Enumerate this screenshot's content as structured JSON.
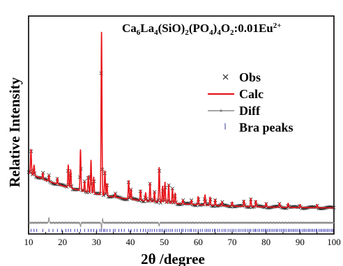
{
  "chart_data": {
    "type": "line",
    "title": {
      "parts": [
        {
          "t": "Ca"
        },
        {
          "t": "6",
          "sub": true
        },
        {
          "t": "La"
        },
        {
          "t": "4",
          "sub": true
        },
        {
          "t": "(SiO)"
        },
        {
          "t": "2",
          "sub": true
        },
        {
          "t": "(PO"
        },
        {
          "t": "4",
          "sub": true
        },
        {
          "t": ")"
        },
        {
          "t": "4",
          "sub": true
        },
        {
          "t": "O"
        },
        {
          "t": "2",
          "sub": true
        },
        {
          "t": ":0.01Eu"
        },
        {
          "t": "2+",
          "sup": true
        }
      ]
    },
    "xlabel": "2θ /degree",
    "ylabel": "Relative Intensity",
    "xlim": [
      10,
      100
    ],
    "ylim": [
      -0.07,
      1.0
    ],
    "xticks": [
      10,
      20,
      30,
      40,
      50,
      60,
      70,
      80,
      90,
      100
    ],
    "legend": {
      "placement": "right",
      "entries": [
        {
          "label": "Obs",
          "marker": "x",
          "color": "#222222"
        },
        {
          "label": "Calc",
          "marker": "line",
          "color": "#e8151b"
        },
        {
          "label": "Diff",
          "marker": "line-dot",
          "color": "#888888"
        },
        {
          "label": "Bra peaks",
          "marker": "tick",
          "color": "#5a5aa8"
        }
      ]
    },
    "colors": {
      "obs": "#222222",
      "calc": "#e8151b",
      "diff": "#8a8a8a",
      "bragg": "#3a3ab0"
    },
    "background": {
      "x0": 10,
      "y0": 0.175,
      "decay": 0.045,
      "floor": 0.055
    },
    "peaks": [
      {
        "x": 10.7,
        "h": 0.12
      },
      {
        "x": 11.6,
        "h": 0.05
      },
      {
        "x": 14.2,
        "h": 0.03
      },
      {
        "x": 16.0,
        "h": 0.03
      },
      {
        "x": 18.5,
        "h": 0.03
      },
      {
        "x": 21.7,
        "h": 0.11
      },
      {
        "x": 22.4,
        "h": 0.09
      },
      {
        "x": 25.3,
        "h": 0.2
      },
      {
        "x": 26.5,
        "h": 0.05
      },
      {
        "x": 27.6,
        "h": 0.08
      },
      {
        "x": 28.4,
        "h": 0.16
      },
      {
        "x": 29.2,
        "h": 0.08
      },
      {
        "x": 31.5,
        "h": 0.8
      },
      {
        "x": 32.5,
        "h": 0.12
      },
      {
        "x": 33.1,
        "h": 0.06
      },
      {
        "x": 35.5,
        "h": 0.02
      },
      {
        "x": 39.5,
        "h": 0.09
      },
      {
        "x": 40.2,
        "h": 0.05
      },
      {
        "x": 43.0,
        "h": 0.05
      },
      {
        "x": 44.5,
        "h": 0.04
      },
      {
        "x": 45.8,
        "h": 0.09
      },
      {
        "x": 47.1,
        "h": 0.05
      },
      {
        "x": 48.5,
        "h": 0.17
      },
      {
        "x": 49.5,
        "h": 0.08
      },
      {
        "x": 50.2,
        "h": 0.1
      },
      {
        "x": 51.3,
        "h": 0.09
      },
      {
        "x": 52.4,
        "h": 0.07
      },
      {
        "x": 53.2,
        "h": 0.05
      },
      {
        "x": 55.5,
        "h": 0.02
      },
      {
        "x": 58.0,
        "h": 0.02
      },
      {
        "x": 60.0,
        "h": 0.04
      },
      {
        "x": 62.0,
        "h": 0.05
      },
      {
        "x": 63.5,
        "h": 0.04
      },
      {
        "x": 65.0,
        "h": 0.03
      },
      {
        "x": 67.0,
        "h": 0.02
      },
      {
        "x": 70.0,
        "h": 0.02
      },
      {
        "x": 73.5,
        "h": 0.03
      },
      {
        "x": 75.5,
        "h": 0.04
      },
      {
        "x": 77.0,
        "h": 0.03
      },
      {
        "x": 80.0,
        "h": 0.02
      },
      {
        "x": 84.0,
        "h": 0.02
      },
      {
        "x": 86.5,
        "h": 0.02
      },
      {
        "x": 90.0,
        "h": 0.015
      },
      {
        "x": 95.0,
        "h": 0.015
      }
    ],
    "diff_spikes": [
      {
        "x": 16.0,
        "d": 0.025
      },
      {
        "x": 25.3,
        "d": -0.02
      },
      {
        "x": 31.5,
        "d": -0.03
      },
      {
        "x": 31.8,
        "d": 0.02
      },
      {
        "x": 48.5,
        "d": -0.015
      }
    ],
    "bragg_positions": [
      10.7,
      11.6,
      12.4,
      14.2,
      16.0,
      17.2,
      18.5,
      19.8,
      21.0,
      21.7,
      22.4,
      23.6,
      24.4,
      25.3,
      26.5,
      27.6,
      28.4,
      29.2,
      30.1,
      31.0,
      31.5,
      32.1,
      32.5,
      33.1,
      34.0,
      35.0,
      35.5,
      36.6,
      37.4,
      38.2,
      39.5,
      40.2,
      41.2,
      42.0,
      43.0,
      43.8,
      44.5,
      45.2,
      45.8,
      46.4,
      47.1,
      47.8,
      48.5,
      49.0,
      49.5,
      50.2,
      50.7,
      51.3,
      51.9,
      52.4,
      53.2,
      53.8,
      54.5,
      55.1,
      55.5,
      56.3,
      57.0,
      57.6,
      58.0,
      58.7,
      59.3,
      60.0,
      60.6,
      61.2,
      62.0,
      62.5,
      63.0,
      63.5,
      64.2,
      64.8,
      65.0,
      65.7,
      66.3,
      67.0,
      67.6,
      68.1,
      68.8,
      69.4,
      70.0,
      70.5,
      71.1,
      71.8,
      72.3,
      72.9,
      73.5,
      74.0,
      74.6,
      75.1,
      75.5,
      76.2,
      76.7,
      77.0,
      77.6,
      78.1,
      78.7,
      79.2,
      79.7,
      80.0,
      80.5,
      81.0,
      81.5,
      82.0,
      82.5,
      83.0,
      83.4,
      84.0,
      84.5,
      85.0,
      85.4,
      85.9,
      86.5,
      86.9,
      87.4,
      87.9,
      88.3,
      88.8,
      89.3,
      89.8,
      90.0,
      90.6,
      91.1,
      91.5,
      92.0,
      92.5,
      92.9,
      93.4,
      93.8,
      94.3,
      94.8,
      95.0,
      95.6,
      96.1,
      96.5,
      97.0,
      97.4,
      97.9,
      98.3,
      98.8,
      99.3,
      99.7
    ]
  }
}
